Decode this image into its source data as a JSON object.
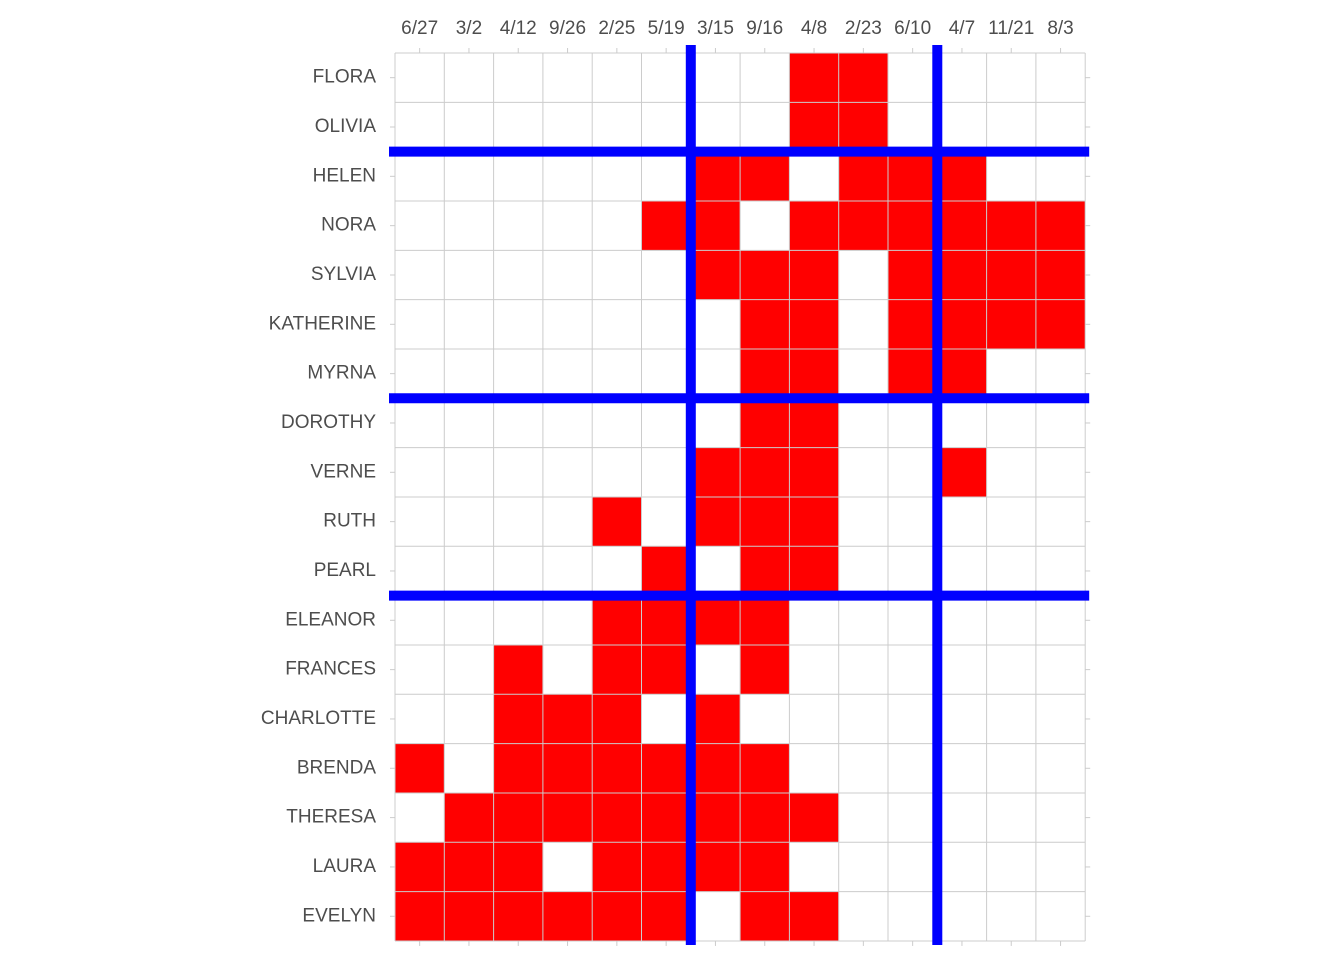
{
  "chart_data": {
    "type": "heatmap",
    "title": "",
    "xlabel": "",
    "ylabel": "",
    "x": [
      "6/27",
      "3/2",
      "4/12",
      "9/26",
      "2/25",
      "5/19",
      "3/15",
      "9/16",
      "4/8",
      "2/23",
      "6/10",
      "4/7",
      "11/21",
      "8/3"
    ],
    "y": [
      "FLORA",
      "OLIVIA",
      "HELEN",
      "NORA",
      "SYLVIA",
      "KATHERINE",
      "MYRNA",
      "DOROTHY",
      "VERNE",
      "RUTH",
      "PEARL",
      "ELEANOR",
      "FRANCES",
      "CHARLOTTE",
      "BRENDA",
      "THERESA",
      "LAURA",
      "EVELYN"
    ],
    "values": [
      [
        0,
        0,
        0,
        0,
        0,
        0,
        0,
        0,
        1,
        1,
        0,
        0,
        0,
        0
      ],
      [
        0,
        0,
        0,
        0,
        0,
        0,
        0,
        0,
        1,
        1,
        0,
        0,
        0,
        0
      ],
      [
        0,
        0,
        0,
        0,
        0,
        0,
        1,
        1,
        0,
        1,
        1,
        1,
        0,
        0
      ],
      [
        0,
        0,
        0,
        0,
        0,
        1,
        1,
        0,
        1,
        1,
        1,
        1,
        1,
        1
      ],
      [
        0,
        0,
        0,
        0,
        0,
        0,
        1,
        1,
        1,
        0,
        1,
        1,
        1,
        1
      ],
      [
        0,
        0,
        0,
        0,
        0,
        0,
        0,
        1,
        1,
        0,
        1,
        1,
        1,
        1
      ],
      [
        0,
        0,
        0,
        0,
        0,
        0,
        0,
        1,
        1,
        0,
        1,
        1,
        0,
        0
      ],
      [
        0,
        0,
        0,
        0,
        0,
        0,
        0,
        1,
        1,
        0,
        0,
        0,
        0,
        0
      ],
      [
        0,
        0,
        0,
        0,
        0,
        0,
        1,
        1,
        1,
        0,
        0,
        1,
        0,
        0
      ],
      [
        0,
        0,
        0,
        0,
        1,
        0,
        1,
        1,
        1,
        0,
        0,
        0,
        0,
        0
      ],
      [
        0,
        0,
        0,
        0,
        0,
        1,
        0,
        1,
        1,
        0,
        0,
        0,
        0,
        0
      ],
      [
        0,
        0,
        0,
        0,
        1,
        1,
        1,
        1,
        0,
        0,
        0,
        0,
        0,
        0
      ],
      [
        0,
        0,
        1,
        0,
        1,
        1,
        0,
        1,
        0,
        0,
        0,
        0,
        0,
        0
      ],
      [
        0,
        0,
        1,
        1,
        1,
        0,
        1,
        0,
        0,
        0,
        0,
        0,
        0,
        0
      ],
      [
        1,
        0,
        1,
        1,
        1,
        1,
        1,
        1,
        0,
        0,
        0,
        0,
        0,
        0
      ],
      [
        0,
        1,
        1,
        1,
        1,
        1,
        1,
        1,
        1,
        0,
        0,
        0,
        0,
        0
      ],
      [
        1,
        1,
        1,
        0,
        1,
        1,
        1,
        1,
        0,
        0,
        0,
        0,
        0,
        0
      ],
      [
        1,
        1,
        1,
        1,
        1,
        1,
        0,
        1,
        1,
        0,
        0,
        0,
        0,
        0
      ]
    ],
    "colors": {
      "filled": "#ff0000",
      "empty": "#ffffff",
      "grid": "#cccccc",
      "divider": "#0000ff"
    },
    "vertical_dividers_after_column": [
      "5/19",
      "6/10"
    ],
    "horizontal_dividers_after_row": [
      "OLIVIA",
      "MYRNA",
      "PEARL"
    ],
    "x_axis_position": "top",
    "grid": true,
    "legend": "none"
  }
}
